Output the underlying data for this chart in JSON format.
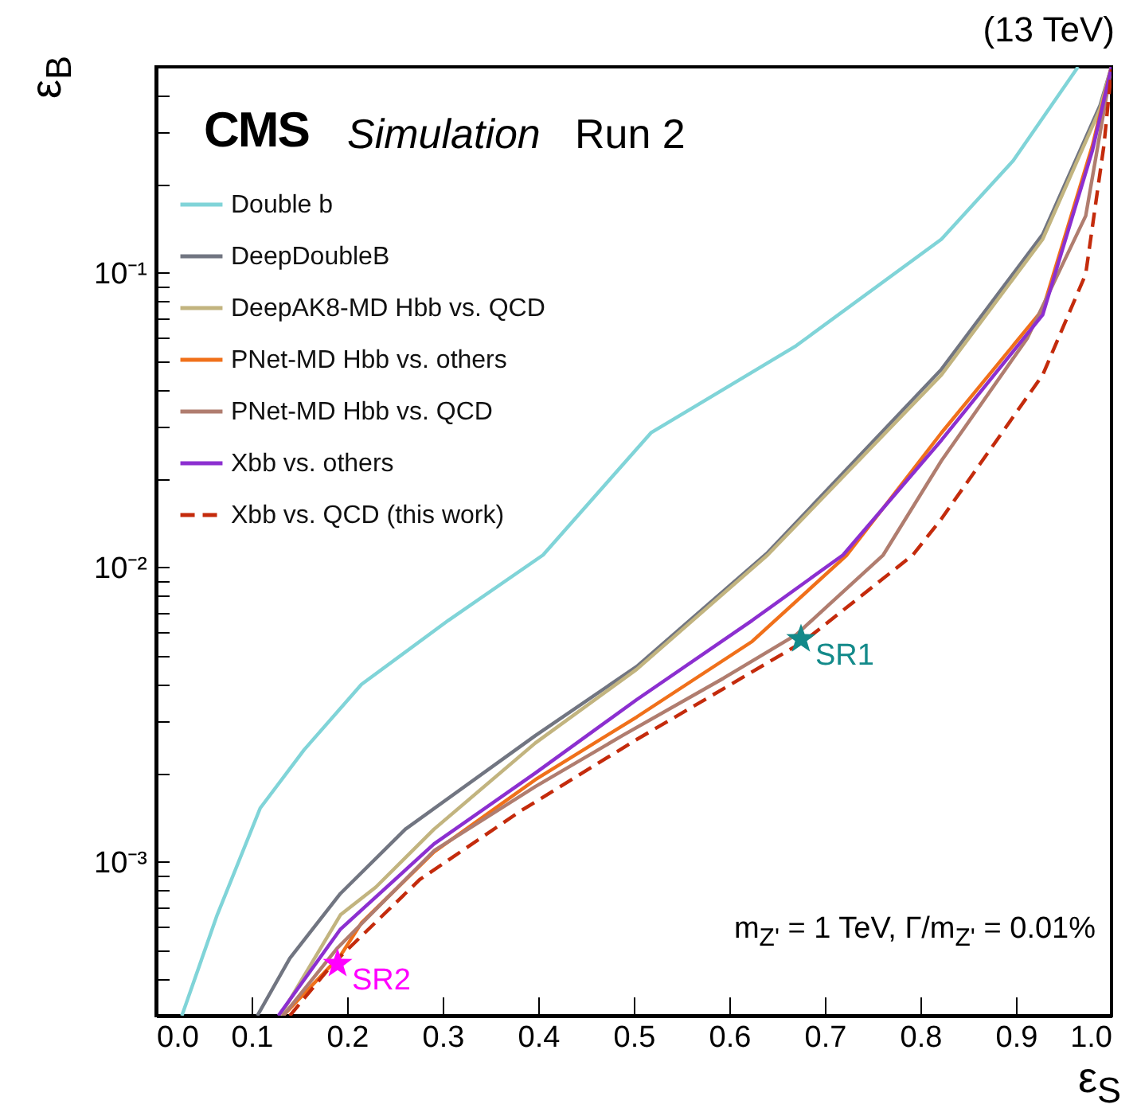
{
  "chart_data": {
    "type": "line",
    "xlabel": "ε$_{S}$",
    "ylabel": "ε$_{B}$",
    "log": "y",
    "legend": "top left",
    "xlim": [
      0,
      1
    ],
    "ylim": [
      0.0003,
      0.5
    ],
    "xticks": [
      {
        "value": 0,
        "label": "0.0"
      },
      {
        "value": 0.1,
        "label": "0.1"
      },
      {
        "value": 0.2,
        "label": "0.2"
      },
      {
        "value": 0.3,
        "label": "0.3"
      },
      {
        "value": 0.4,
        "label": "0.4"
      },
      {
        "value": 0.5,
        "label": "0.5"
      },
      {
        "value": 0.6,
        "label": "0.6"
      },
      {
        "value": 0.7,
        "label": "0.7"
      },
      {
        "value": 0.8,
        "label": "0.8"
      },
      {
        "value": 0.9,
        "label": "0.9"
      },
      {
        "value": 1,
        "label": "1.0"
      }
    ],
    "yticks": [
      {
        "value": 0.0003,
        "label": null
      },
      {
        "value": 0.0004,
        "label": null
      },
      {
        "value": 0.0005,
        "label": null
      },
      {
        "value": 0.0006,
        "label": null
      },
      {
        "value": 0.0007,
        "label": null
      },
      {
        "value": 0.0008,
        "label": null
      },
      {
        "value": 0.0009,
        "label": null
      },
      {
        "value": 0.001,
        "label": "10⁻³"
      },
      {
        "value": 0.002,
        "label": null
      },
      {
        "value": 0.003,
        "label": null
      },
      {
        "value": 0.004,
        "label": null
      },
      {
        "value": 0.005,
        "label": null
      },
      {
        "value": 0.006,
        "label": null
      },
      {
        "value": 0.007,
        "label": null
      },
      {
        "value": 0.008,
        "label": null
      },
      {
        "value": 0.009,
        "label": null
      },
      {
        "value": 0.01,
        "label": "10⁻²"
      },
      {
        "value": 0.02,
        "label": null
      },
      {
        "value": 0.03,
        "label": null
      },
      {
        "value": 0.04,
        "label": null
      },
      {
        "value": 0.05,
        "label": null
      },
      {
        "value": 0.06,
        "label": null
      },
      {
        "value": 0.07,
        "label": null
      },
      {
        "value": 0.08,
        "label": null
      },
      {
        "value": 0.09,
        "label": null
      },
      {
        "value": 0.1,
        "label": "10⁻¹"
      },
      {
        "value": 0.2,
        "label": null
      },
      {
        "value": 0.3,
        "label": null
      },
      {
        "value": 0.4,
        "label": null
      },
      {
        "value": 0.5,
        "label": null
      }
    ],
    "annotations": [
      "(13 TeV)",
      "CMS",
      "Simulation",
      "Run 2",
      "m$_{Z'}$ = 1 TeV,  Γ/m$_{Z'}$ = 0.01%"
    ],
    "series": [
      {
        "name": "Double b",
        "color": "#80d4d8",
        "line_style": "solid",
        "x": [
          0.027,
          0.064,
          0.109,
          0.155,
          0.215,
          0.306,
          0.405,
          0.518,
          0.67,
          0.822,
          0.897,
          0.965
        ],
        "values": [
          0.0003,
          0.00066,
          0.00152,
          0.0024,
          0.004,
          0.0066,
          0.011,
          0.0286,
          0.0565,
          0.13,
          0.24,
          0.5
        ]
      },
      {
        "name": "DeepDoubleB",
        "color": "#717581",
        "line_style": "solid",
        "x": [
          0.106,
          0.14,
          0.193,
          0.261,
          0.397,
          0.503,
          0.64,
          0.822,
          0.928,
          0.988,
          1.0
        ],
        "values": [
          0.0003,
          0.00047,
          0.00078,
          0.00129,
          0.00268,
          0.0046,
          0.0112,
          0.047,
          0.135,
          0.37,
          0.5
        ]
      },
      {
        "name": "DeepAK8-MD Hbb vs. QCD",
        "color": "#c2b47f",
        "line_style": "solid",
        "x": [
          0.13,
          0.193,
          0.23,
          0.291,
          0.397,
          0.503,
          0.64,
          0.822,
          0.928,
          0.988,
          1.0
        ],
        "values": [
          0.0003,
          0.00066,
          0.00082,
          0.00129,
          0.00253,
          0.0045,
          0.011,
          0.045,
          0.13,
          0.36,
          0.5
        ]
      },
      {
        "name": "PNet-MD Hbb vs. others",
        "color": "#f0701a",
        "line_style": "solid",
        "x": [
          0.133,
          0.193,
          0.215,
          0.291,
          0.397,
          0.503,
          0.624,
          0.723,
          0.822,
          0.928,
          0.98,
          1.0
        ],
        "values": [
          0.0003,
          0.00048,
          0.00062,
          0.00108,
          0.0019,
          0.0031,
          0.0056,
          0.011,
          0.0286,
          0.075,
          0.27,
          0.5
        ]
      },
      {
        "name": "PNet-MD Hbb vs. QCD",
        "color": "#b07d6f",
        "line_style": "solid",
        "x": [
          0.133,
          0.19,
          0.291,
          0.397,
          0.488,
          0.594,
          0.67,
          0.761,
          0.822,
          0.912,
          0.973,
          1.0
        ],
        "values": [
          0.0003,
          0.00051,
          0.00109,
          0.0018,
          0.00268,
          0.0042,
          0.0059,
          0.011,
          0.023,
          0.06,
          0.156,
          0.5
        ]
      },
      {
        "name": "Xbb vs. others",
        "color": "#8c2fd0",
        "line_style": "solid",
        "x": [
          0.128,
          0.193,
          0.291,
          0.397,
          0.503,
          0.624,
          0.719,
          0.822,
          0.928,
          0.98,
          1.0
        ],
        "values": [
          0.0003,
          0.00059,
          0.00115,
          0.002,
          0.00355,
          0.0066,
          0.011,
          0.027,
          0.072,
          0.26,
          0.5
        ]
      },
      {
        "name": "Xbb vs. QCD (this work)",
        "color": "#c42b0c",
        "line_style": "dashed",
        "x": [
          0.14,
          0.185,
          0.276,
          0.382,
          0.503,
          0.594,
          0.678,
          0.792,
          0.822,
          0.928,
          0.973,
          0.992,
          1.0
        ],
        "values": [
          0.0003,
          0.00045,
          0.00087,
          0.00149,
          0.0026,
          0.00387,
          0.0056,
          0.011,
          0.0146,
          0.045,
          0.099,
          0.27,
          0.49
        ]
      },
      {
        "name": "SR1",
        "type": "scatter",
        "marker": "star",
        "color": "#138a8a",
        "x": [
          0.675
        ],
        "values": [
          0.0057
        ]
      },
      {
        "name": "SR2",
        "type": "scatter",
        "marker": "star",
        "color": "#ff00ff",
        "x": [
          0.19
        ],
        "values": [
          0.00045
        ]
      }
    ]
  }
}
